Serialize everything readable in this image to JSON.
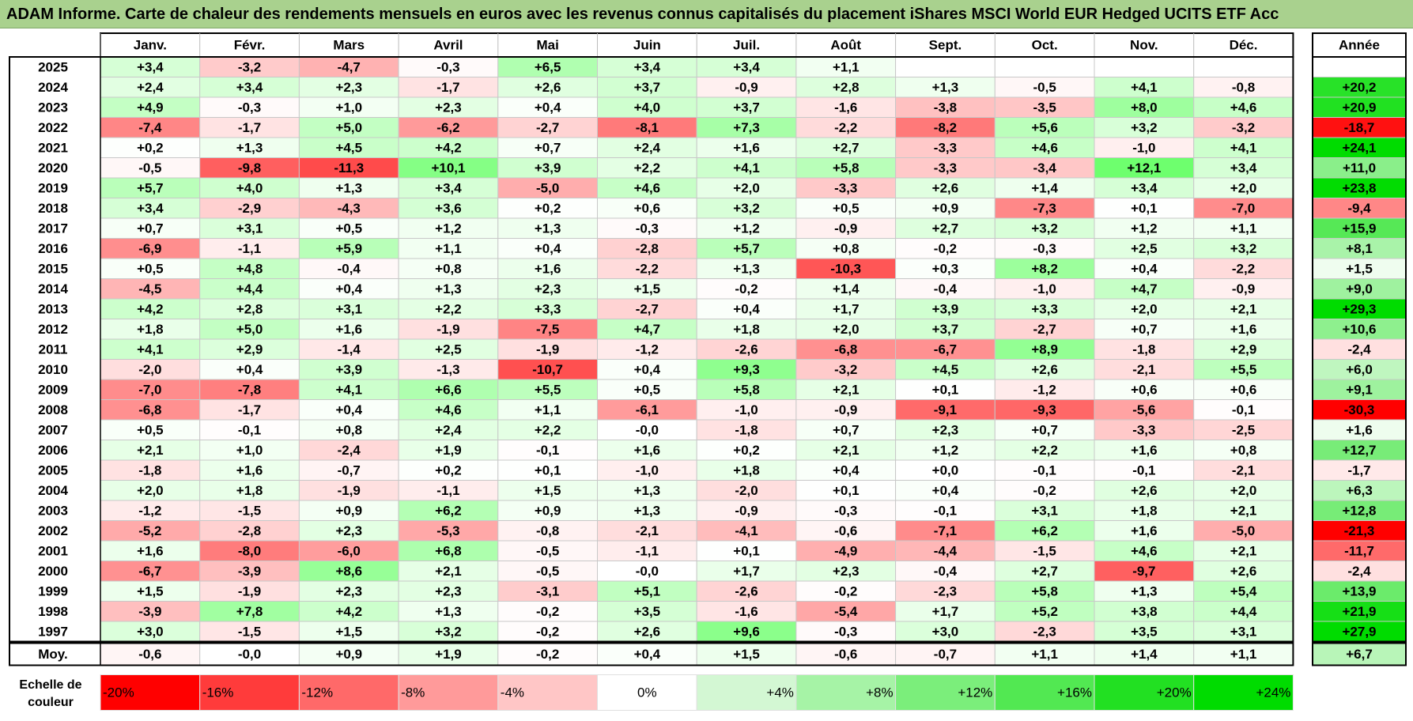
{
  "title": "ADAM Informe. Carte de chaleur des rendements mensuels en euros avec les revenus connus capitalisés du placement iShares MSCI World EUR Hedged UCITS ETF Acc",
  "chart_data": {
    "type": "heatmap",
    "months": [
      "Janv.",
      "Févr.",
      "Mars",
      "Avril",
      "Mai",
      "Juin",
      "Juil.",
      "Août",
      "Sept.",
      "Oct.",
      "Nov.",
      "Déc."
    ],
    "year_header": "Année",
    "rows": [
      {
        "year": "2025",
        "monthly": [
          "+3,4",
          "-3,2",
          "-4,7",
          "-0,3",
          "+6,5",
          "+3,4",
          "+3,4",
          "+1,1",
          "",
          "",
          "",
          ""
        ],
        "annual": ""
      },
      {
        "year": "2024",
        "monthly": [
          "+2,4",
          "+3,4",
          "+2,3",
          "-1,7",
          "+2,6",
          "+3,7",
          "-0,9",
          "+2,8",
          "+1,3",
          "-0,5",
          "+4,1",
          "-0,8"
        ],
        "annual": "+20,2"
      },
      {
        "year": "2023",
        "monthly": [
          "+4,9",
          "-0,3",
          "+1,0",
          "+2,3",
          "+0,4",
          "+4,0",
          "+3,7",
          "-1,6",
          "-3,8",
          "-3,5",
          "+8,0",
          "+4,6"
        ],
        "annual": "+20,9"
      },
      {
        "year": "2022",
        "monthly": [
          "-7,4",
          "-1,7",
          "+5,0",
          "-6,2",
          "-2,7",
          "-8,1",
          "+7,3",
          "-2,2",
          "-8,2",
          "+5,6",
          "+3,2",
          "-3,2"
        ],
        "annual": "-18,7"
      },
      {
        "year": "2021",
        "monthly": [
          "+0,2",
          "+1,3",
          "+4,5",
          "+4,2",
          "+0,7",
          "+2,4",
          "+1,6",
          "+2,7",
          "-3,3",
          "+4,6",
          "-1,0",
          "+4,1"
        ],
        "annual": "+24,1"
      },
      {
        "year": "2020",
        "monthly": [
          "-0,5",
          "-9,8",
          "-11,3",
          "+10,1",
          "+3,9",
          "+2,2",
          "+4,1",
          "+5,8",
          "-3,3",
          "-3,4",
          "+12,1",
          "+3,4"
        ],
        "annual": "+11,0"
      },
      {
        "year": "2019",
        "monthly": [
          "+5,7",
          "+4,0",
          "+1,3",
          "+3,4",
          "-5,0",
          "+4,6",
          "+2,0",
          "-3,3",
          "+2,6",
          "+1,4",
          "+3,4",
          "+2,0"
        ],
        "annual": "+23,8"
      },
      {
        "year": "2018",
        "monthly": [
          "+3,4",
          "-2,9",
          "-4,3",
          "+3,6",
          "+0,2",
          "+0,6",
          "+3,2",
          "+0,5",
          "+0,9",
          "-7,3",
          "+0,1",
          "-7,0"
        ],
        "annual": "-9,4"
      },
      {
        "year": "2017",
        "monthly": [
          "+0,7",
          "+3,1",
          "+0,5",
          "+1,2",
          "+1,3",
          "-0,3",
          "+1,2",
          "-0,9",
          "+2,7",
          "+3,2",
          "+1,2",
          "+1,1"
        ],
        "annual": "+15,9"
      },
      {
        "year": "2016",
        "monthly": [
          "-6,9",
          "-1,1",
          "+5,9",
          "+1,1",
          "+0,4",
          "-2,8",
          "+5,7",
          "+0,8",
          "-0,2",
          "-0,3",
          "+2,5",
          "+3,2"
        ],
        "annual": "+8,1"
      },
      {
        "year": "2015",
        "monthly": [
          "+0,5",
          "+4,8",
          "-0,4",
          "+0,8",
          "+1,6",
          "-2,2",
          "+1,3",
          "-10,3",
          "+0,3",
          "+8,2",
          "+0,4",
          "-2,2"
        ],
        "annual": "+1,5"
      },
      {
        "year": "2014",
        "monthly": [
          "-4,5",
          "+4,4",
          "+0,4",
          "+1,3",
          "+2,3",
          "+1,5",
          "-0,2",
          "+1,4",
          "-0,4",
          "-1,0",
          "+4,7",
          "-0,9"
        ],
        "annual": "+9,0"
      },
      {
        "year": "2013",
        "monthly": [
          "+4,2",
          "+2,8",
          "+3,1",
          "+2,2",
          "+3,3",
          "-2,7",
          "+0,4",
          "+1,7",
          "+3,9",
          "+3,3",
          "+2,0",
          "+2,1"
        ],
        "annual": "+29,3"
      },
      {
        "year": "2012",
        "monthly": [
          "+1,8",
          "+5,0",
          "+1,6",
          "-1,9",
          "-7,5",
          "+4,7",
          "+1,8",
          "+2,0",
          "+3,7",
          "-2,7",
          "+0,7",
          "+1,6"
        ],
        "annual": "+10,6"
      },
      {
        "year": "2011",
        "monthly": [
          "+4,1",
          "+2,9",
          "-1,4",
          "+2,5",
          "-1,9",
          "-1,2",
          "-2,6",
          "-6,8",
          "-6,7",
          "+8,9",
          "-1,8",
          "+2,9"
        ],
        "annual": "-2,4"
      },
      {
        "year": "2010",
        "monthly": [
          "-2,0",
          "+0,4",
          "+3,9",
          "-1,3",
          "-10,7",
          "+0,4",
          "+9,3",
          "-3,2",
          "+4,5",
          "+2,6",
          "-2,1",
          "+5,5"
        ],
        "annual": "+6,0"
      },
      {
        "year": "2009",
        "monthly": [
          "-7,0",
          "-7,8",
          "+4,1",
          "+6,6",
          "+5,5",
          "+0,5",
          "+5,8",
          "+2,1",
          "+0,1",
          "-1,2",
          "+0,6",
          "+0,6"
        ],
        "annual": "+9,1"
      },
      {
        "year": "2008",
        "monthly": [
          "-6,8",
          "-1,7",
          "+0,4",
          "+4,6",
          "+1,1",
          "-6,1",
          "-1,0",
          "-0,9",
          "-9,1",
          "-9,3",
          "-5,6",
          "-0,1"
        ],
        "annual": "-30,3"
      },
      {
        "year": "2007",
        "monthly": [
          "+0,5",
          "-0,1",
          "+0,8",
          "+2,4",
          "+2,2",
          "-0,0",
          "-1,8",
          "+0,7",
          "+2,3",
          "+0,7",
          "-3,3",
          "-2,5"
        ],
        "annual": "+1,6"
      },
      {
        "year": "2006",
        "monthly": [
          "+2,1",
          "+1,0",
          "-2,4",
          "+1,9",
          "-0,1",
          "+1,6",
          "+0,2",
          "+2,1",
          "+1,2",
          "+2,2",
          "+1,6",
          "+0,8"
        ],
        "annual": "+12,7"
      },
      {
        "year": "2005",
        "monthly": [
          "-1,8",
          "+1,6",
          "-0,7",
          "+0,2",
          "+0,1",
          "-1,0",
          "+1,8",
          "+0,4",
          "+0,0",
          "-0,1",
          "-0,1",
          "-2,1"
        ],
        "annual": "-1,7"
      },
      {
        "year": "2004",
        "monthly": [
          "+2,0",
          "+1,8",
          "-1,9",
          "-1,1",
          "+1,5",
          "+1,3",
          "-2,0",
          "+0,1",
          "+0,4",
          "-0,2",
          "+2,6",
          "+2,0"
        ],
        "annual": "+6,3"
      },
      {
        "year": "2003",
        "monthly": [
          "-1,2",
          "-1,5",
          "+0,9",
          "+6,2",
          "+0,9",
          "+1,3",
          "-0,9",
          "-0,3",
          "-0,1",
          "+3,1",
          "+1,8",
          "+2,1"
        ],
        "annual": "+12,8"
      },
      {
        "year": "2002",
        "monthly": [
          "-5,2",
          "-2,8",
          "+2,3",
          "-5,3",
          "-0,8",
          "-2,1",
          "-4,1",
          "-0,6",
          "-7,1",
          "+6,2",
          "+1,6",
          "-5,0"
        ],
        "annual": "-21,3"
      },
      {
        "year": "2001",
        "monthly": [
          "+1,6",
          "-8,0",
          "-6,0",
          "+6,8",
          "-0,5",
          "-1,1",
          "+0,1",
          "-4,9",
          "-4,4",
          "-1,5",
          "+4,6",
          "+2,1"
        ],
        "annual": "-11,7"
      },
      {
        "year": "2000",
        "monthly": [
          "-6,7",
          "-3,9",
          "+8,6",
          "+2,1",
          "-0,5",
          "-0,0",
          "+1,7",
          "+2,3",
          "-0,4",
          "+2,7",
          "-9,7",
          "+2,6"
        ],
        "annual": "-2,4"
      },
      {
        "year": "1999",
        "monthly": [
          "+1,5",
          "-1,9",
          "+2,3",
          "+2,3",
          "-3,1",
          "+5,1",
          "-2,6",
          "-0,2",
          "-2,3",
          "+5,8",
          "+1,3",
          "+5,4"
        ],
        "annual": "+13,9"
      },
      {
        "year": "1998",
        "monthly": [
          "-3,9",
          "+7,8",
          "+4,2",
          "+1,3",
          "-0,2",
          "+3,5",
          "-1,6",
          "-5,4",
          "+1,7",
          "+5,2",
          "+3,8",
          "+4,4"
        ],
        "annual": "+21,9"
      },
      {
        "year": "1997",
        "monthly": [
          "+3,0",
          "-1,5",
          "+1,5",
          "+3,2",
          "-0,2",
          "+2,6",
          "+9,6",
          "-0,3",
          "+3,0",
          "-2,3",
          "+3,5",
          "+3,1"
        ],
        "annual": "+27,9"
      }
    ],
    "average": {
      "label": "Moy.",
      "monthly": [
        "-0,6",
        "-0,0",
        "+0,9",
        "+1,9",
        "-0,2",
        "+0,4",
        "+1,5",
        "-0,6",
        "-0,7",
        "+1,1",
        "+1,4",
        "+1,1"
      ],
      "annual": "+6,7"
    },
    "scale": {
      "label_line1": "Echelle de",
      "label_line2": "couleur",
      "stops": [
        {
          "label": "-20%",
          "value": -20,
          "color": "#ff0000"
        },
        {
          "label": "-16%",
          "value": -16,
          "color": "#ff3b3b"
        },
        {
          "label": "-12%",
          "value": -12,
          "color": "#ff6969"
        },
        {
          "label": "-8%",
          "value": -8,
          "color": "#ff9a9a"
        },
        {
          "label": "-4%",
          "value": -4,
          "color": "#ffc6c6"
        },
        {
          "label": "0%",
          "value": 0,
          "color": "#ffffff"
        },
        {
          "label": "+4%",
          "value": 4,
          "color": "#d3f7d3"
        },
        {
          "label": "+8%",
          "value": 8,
          "color": "#a6f3a6"
        },
        {
          "label": "+12%",
          "value": 12,
          "color": "#7bee7b"
        },
        {
          "label": "+16%",
          "value": 16,
          "color": "#52e852"
        },
        {
          "label": "+20%",
          "value": 20,
          "color": "#22e022"
        },
        {
          "label": "+24%",
          "value": 24,
          "color": "#00dc00"
        }
      ]
    }
  }
}
